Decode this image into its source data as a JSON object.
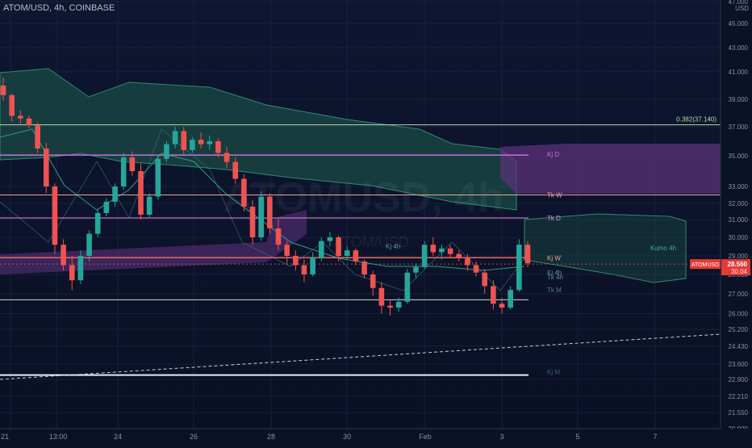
{
  "header": {
    "title": "ATOM/USD, 4h, COINBASE"
  },
  "currency": "USD",
  "watermark": {
    "main": "ATOMUSD, 4h",
    "sub": "ATOM/USD"
  },
  "price_tag": {
    "symbol": "ATOMUSD",
    "price": "28.560",
    "sub": "30.04"
  },
  "colors": {
    "bull": "#26a69a",
    "bear": "#ef5350",
    "kumo_green": "#1f5d4e",
    "kumo_purple": "#5b3178",
    "kj_d": "#c86fd6",
    "tk_w": "#f0a0a0",
    "tk_d": "#e58ae8",
    "level": "#b8d9a8"
  },
  "chart_data": {
    "type": "candlestick",
    "title": "ATOM/USD, 4h, COINBASE",
    "y_axis_ticks": [
      "20.900",
      "21.550",
      "22.210",
      "22.900",
      "23.600",
      "24.430",
      "25.200",
      "26.000",
      "27.000",
      "28.000",
      "29.000",
      "30.000",
      "31.000",
      "32.000",
      "33.000",
      "35.000",
      "37.000",
      "39.000",
      "41.000",
      "43.000",
      "45.000",
      "47.000"
    ],
    "x_axis_ticks": [
      "21",
      "13:00",
      "24",
      "26",
      "28",
      "30",
      "Feb",
      "3",
      "5",
      "7"
    ],
    "annotations": [
      {
        "label": "0.382(37.140)",
        "value": 37.14
      },
      {
        "label": "Kj D",
        "value": 35.1
      },
      {
        "label": "Tk W",
        "value": 32.5
      },
      {
        "label": "Tk D",
        "value": 31.1
      },
      {
        "label": "Kumo 4h",
        "value": 29.7
      },
      {
        "label": "Kj W",
        "value": 28.9
      },
      {
        "label": "Tk 4h",
        "value": 28.2
      },
      {
        "label": "Kj 4h",
        "value": 28.1
      },
      {
        "label": "Tk M",
        "value": 27.2
      },
      {
        "label": "Kj M",
        "value": 23.25
      },
      {
        "label": "Kj 4h",
        "value": 29.8
      }
    ],
    "horizontal_levels": [
      37.14,
      35.05,
      32.5,
      31.1,
      28.9,
      26.7,
      23.1
    ],
    "candles": [
      [
        40.0,
        40.6,
        38.9,
        39.3
      ],
      [
        39.3,
        39.4,
        37.4,
        37.8
      ],
      [
        37.8,
        38.2,
        37.2,
        37.6
      ],
      [
        37.6,
        37.8,
        36.9,
        37.1
      ],
      [
        37.1,
        37.3,
        35.2,
        35.5
      ],
      [
        35.5,
        35.9,
        32.6,
        33.0
      ],
      [
        33.0,
        33.2,
        29.1,
        29.6
      ],
      [
        29.6,
        29.9,
        28.2,
        28.5
      ],
      [
        28.5,
        29.0,
        27.2,
        27.7
      ],
      [
        27.7,
        29.3,
        27.5,
        29.0
      ],
      [
        29.0,
        30.4,
        28.7,
        30.2
      ],
      [
        30.2,
        31.6,
        30.0,
        31.4
      ],
      [
        31.4,
        32.3,
        31.2,
        32.1
      ],
      [
        32.1,
        33.2,
        31.8,
        33.0
      ],
      [
        33.0,
        35.2,
        32.8,
        34.9
      ],
      [
        34.9,
        35.3,
        33.7,
        34.0
      ],
      [
        34.0,
        34.5,
        31.0,
        31.3
      ],
      [
        31.3,
        32.6,
        31.1,
        32.4
      ],
      [
        32.4,
        35.1,
        32.2,
        34.8
      ],
      [
        34.8,
        36.0,
        34.6,
        35.8
      ],
      [
        35.8,
        37.0,
        35.5,
        36.7
      ],
      [
        36.7,
        37.0,
        35.1,
        35.4
      ],
      [
        35.4,
        36.3,
        35.2,
        36.1
      ],
      [
        36.1,
        36.6,
        35.5,
        35.8
      ],
      [
        35.8,
        36.4,
        35.4,
        36.0
      ],
      [
        36.0,
        36.2,
        34.9,
        35.2
      ],
      [
        35.2,
        35.6,
        34.2,
        34.6
      ],
      [
        34.6,
        34.9,
        33.2,
        33.5
      ],
      [
        33.5,
        33.8,
        31.5,
        31.8
      ],
      [
        31.8,
        32.2,
        29.6,
        30.0
      ],
      [
        30.0,
        32.7,
        29.8,
        32.4
      ],
      [
        32.4,
        32.6,
        30.2,
        30.5
      ],
      [
        30.5,
        31.0,
        29.3,
        29.6
      ],
      [
        29.6,
        29.8,
        28.6,
        29.0
      ],
      [
        29.0,
        29.3,
        28.2,
        28.5
      ],
      [
        28.5,
        28.8,
        27.6,
        28.0
      ],
      [
        28.0,
        29.2,
        27.9,
        28.9
      ],
      [
        28.9,
        30.0,
        28.7,
        29.8
      ],
      [
        29.8,
        30.3,
        29.5,
        30.0
      ],
      [
        30.0,
        30.1,
        28.7,
        29.0
      ],
      [
        29.0,
        29.5,
        28.8,
        29.3
      ],
      [
        29.3,
        29.4,
        28.5,
        28.7
      ],
      [
        28.7,
        28.8,
        27.8,
        28.0
      ],
      [
        28.0,
        28.2,
        26.9,
        27.3
      ],
      [
        27.3,
        27.6,
        26.0,
        26.4
      ],
      [
        26.4,
        26.7,
        25.9,
        26.3
      ],
      [
        26.3,
        26.8,
        26.1,
        26.6
      ],
      [
        26.6,
        28.3,
        26.5,
        28.1
      ],
      [
        28.1,
        28.6,
        27.8,
        28.4
      ],
      [
        28.4,
        29.8,
        28.3,
        29.6
      ],
      [
        29.6,
        30.0,
        29.0,
        29.2
      ],
      [
        29.2,
        29.6,
        28.8,
        29.4
      ],
      [
        29.4,
        29.6,
        28.9,
        29.1
      ],
      [
        29.1,
        29.3,
        28.7,
        28.9
      ],
      [
        28.9,
        29.1,
        28.2,
        28.5
      ],
      [
        28.5,
        28.7,
        27.9,
        28.1
      ],
      [
        28.1,
        28.3,
        27.0,
        27.4
      ],
      [
        27.4,
        27.7,
        26.2,
        26.5
      ],
      [
        26.5,
        26.8,
        26.0,
        26.3
      ],
      [
        26.3,
        27.4,
        26.2,
        27.2
      ],
      [
        27.2,
        29.9,
        27.1,
        29.6
      ],
      [
        29.6,
        29.8,
        28.4,
        28.6
      ]
    ]
  }
}
